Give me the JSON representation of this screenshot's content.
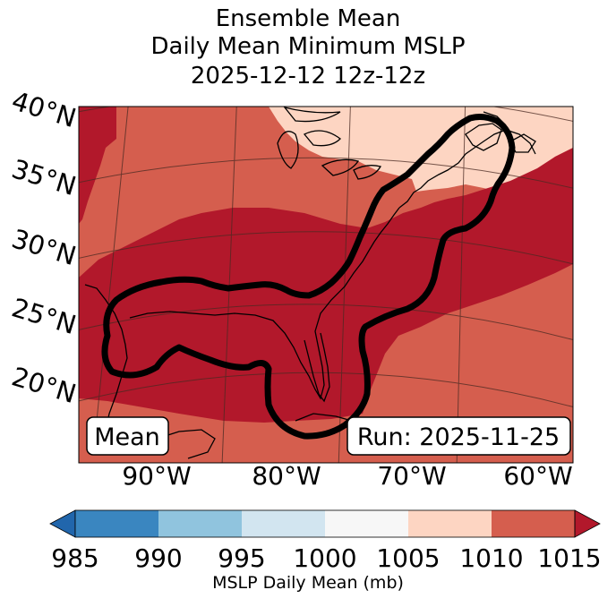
{
  "title": {
    "line1": "Ensemble Mean",
    "line2": "Daily Mean Minimum MSLP",
    "line3": "2025-12-12 12z-12z"
  },
  "map": {
    "lat_labels": [
      "40°N",
      "35°N",
      "30°N",
      "25°N",
      "20°N"
    ],
    "lon_labels": [
      "90°W",
      "80°W",
      "70°W",
      "60°W"
    ],
    "badge_left": "Mean",
    "badge_right": "Run: 2025-11-25"
  },
  "colorbar": {
    "ticks": [
      "985",
      "990",
      "995",
      "1000",
      "1005",
      "1010",
      "1015"
    ],
    "label": "MSLP Daily Mean (mb)",
    "colors": [
      "#3a86c0",
      "#90c4de",
      "#d2e5f0",
      "#f7f7f7",
      "#fdd5c2",
      "#d55e4e",
      "#b2182b"
    ]
  },
  "colors": {
    "band_1010_1015": "#d55e4e",
    "band_1005_1010": "#fdd5c2",
    "band_above_1015": "#b2182b",
    "contour": "#000000"
  }
}
